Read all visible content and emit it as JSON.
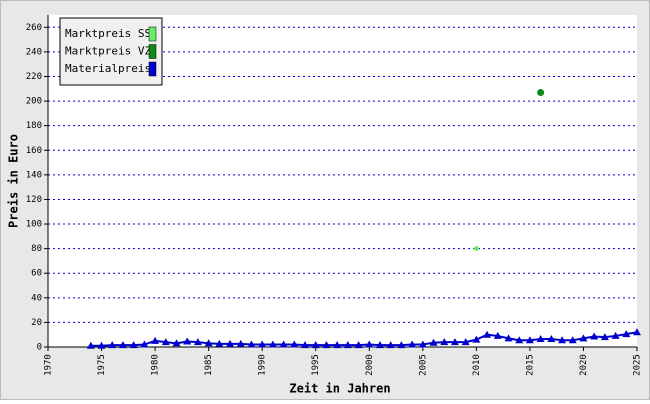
{
  "chart_data": {
    "type": "line",
    "ylabel": "Preis in Euro",
    "xlabel": "Zeit in Jahren",
    "xlim": [
      1970,
      2025
    ],
    "xticks": [
      1970,
      1975,
      1980,
      1985,
      1990,
      1995,
      2000,
      2005,
      2010,
      2015,
      2020,
      2025
    ],
    "ylim": [
      0,
      270
    ],
    "yticks": [
      0,
      20,
      40,
      60,
      80,
      100,
      120,
      140,
      160,
      180,
      200,
      220,
      240,
      260
    ],
    "grid": true,
    "legend": "upper left",
    "series": [
      {
        "name": "Marktpreis SS",
        "color": "#66ee66",
        "marker": "circle",
        "x": [
          2010
        ],
        "values": [
          80
        ]
      },
      {
        "name": "Marktpreis VZ",
        "color": "#118811",
        "marker": "circle",
        "x": [
          2016
        ],
        "values": [
          207
        ]
      },
      {
        "name": "Materialpreis",
        "color": "#0000cc",
        "marker": "triangle",
        "x": [
          1974,
          1975,
          1976,
          1977,
          1978,
          1979,
          1980,
          1981,
          1982,
          1983,
          1984,
          1985,
          1986,
          1987,
          1988,
          1989,
          1990,
          1991,
          1992,
          1993,
          1994,
          1995,
          1996,
          1997,
          1998,
          1999,
          2000,
          2001,
          2002,
          2003,
          2004,
          2005,
          2006,
          2007,
          2008,
          2009,
          2010,
          2011,
          2012,
          2013,
          2014,
          2015,
          2016,
          2017,
          2018,
          2019,
          2020,
          2021,
          2022,
          2023,
          2024,
          2025
        ],
        "values": [
          1,
          1,
          1.5,
          1.5,
          1.5,
          2,
          5,
          4,
          3,
          4.5,
          4,
          3,
          2.5,
          2.5,
          2.5,
          2,
          2,
          2,
          2,
          2,
          1.5,
          1.5,
          1.5,
          1.5,
          1.5,
          1.5,
          2,
          1.5,
          1.5,
          1.5,
          2,
          2,
          3.5,
          4,
          4,
          4,
          6,
          10,
          9,
          7,
          5.5,
          5.5,
          6.5,
          6.5,
          5.5,
          5.5,
          7,
          8.5,
          8,
          9,
          10.5,
          12
        ]
      }
    ]
  }
}
